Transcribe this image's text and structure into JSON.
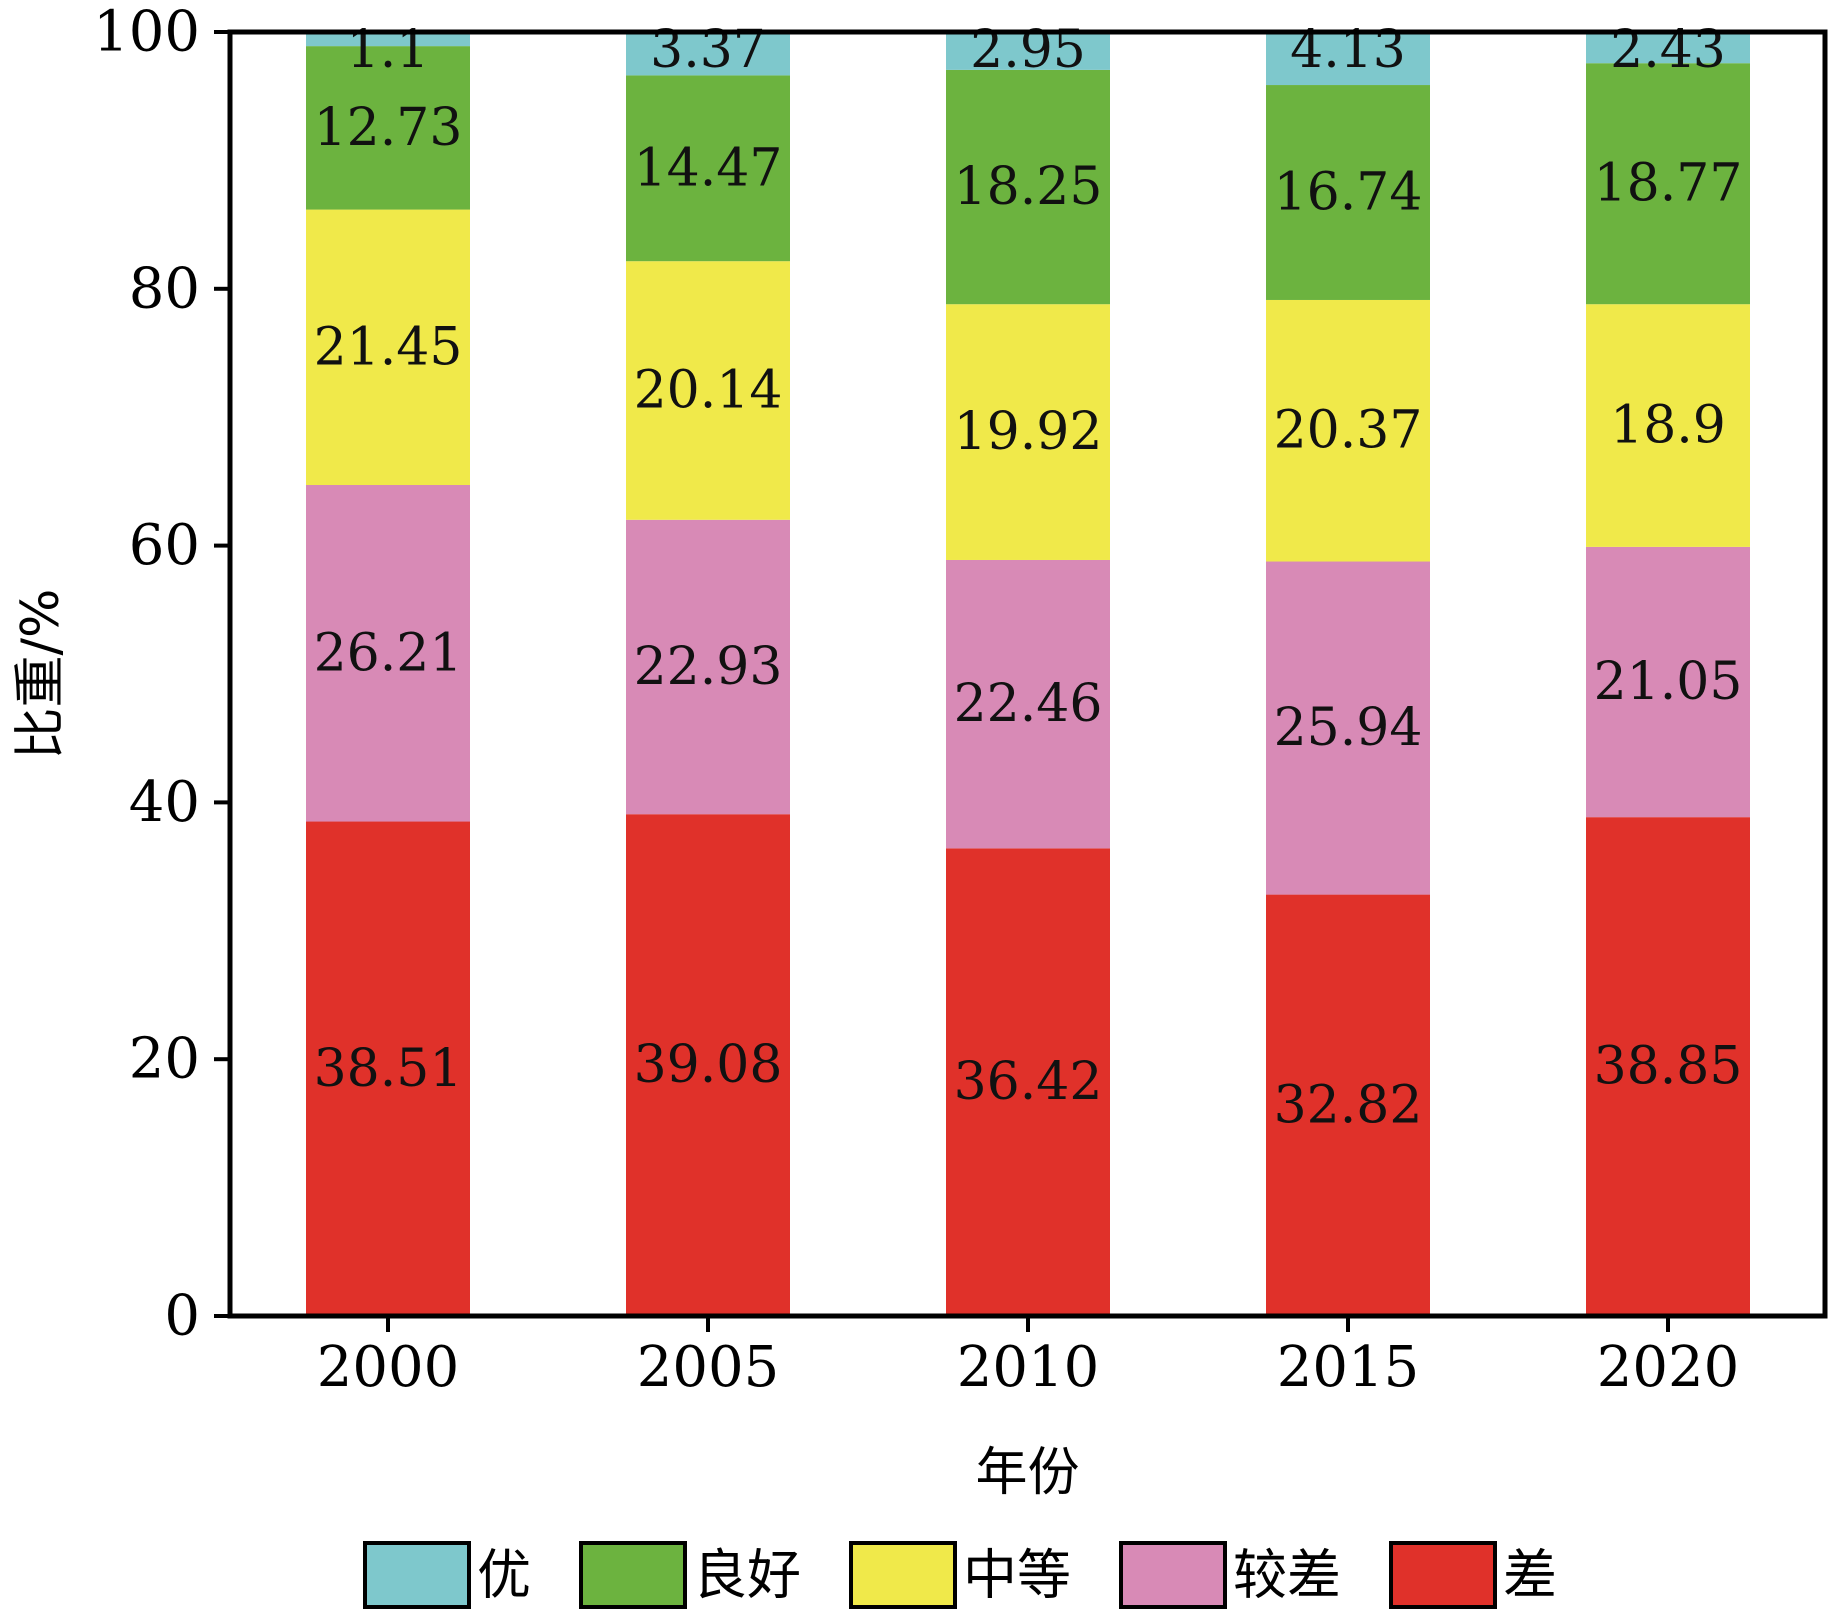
{
  "chart_data": {
    "type": "bar",
    "stacked": true,
    "title": "",
    "xlabel": "年份",
    "ylabel": "比重/%",
    "ylim": [
      0,
      100
    ],
    "yticks": [
      0,
      20,
      40,
      60,
      80,
      100
    ],
    "grid": false,
    "legend_position": "bottom",
    "categories": [
      "2000",
      "2005",
      "2010",
      "2015",
      "2020"
    ],
    "series": [
      {
        "name": "差",
        "color": "#e0312a",
        "values": [
          38.51,
          39.08,
          36.42,
          32.82,
          38.85
        ]
      },
      {
        "name": "较差",
        "color": "#d88ab6",
        "values": [
          26.21,
          22.93,
          22.46,
          25.94,
          21.05
        ]
      },
      {
        "name": "中等",
        "color": "#f0e94a",
        "values": [
          21.45,
          20.14,
          19.92,
          20.37,
          18.9
        ]
      },
      {
        "name": "良好",
        "color": "#6cb33f",
        "values": [
          12.73,
          14.47,
          18.25,
          16.74,
          18.77
        ]
      },
      {
        "name": "优",
        "color": "#7ec8cc",
        "values": [
          1.1,
          3.37,
          2.95,
          4.13,
          2.43
        ]
      }
    ],
    "legend_order": [
      "优",
      "良好",
      "中等",
      "较差",
      "差"
    ]
  }
}
